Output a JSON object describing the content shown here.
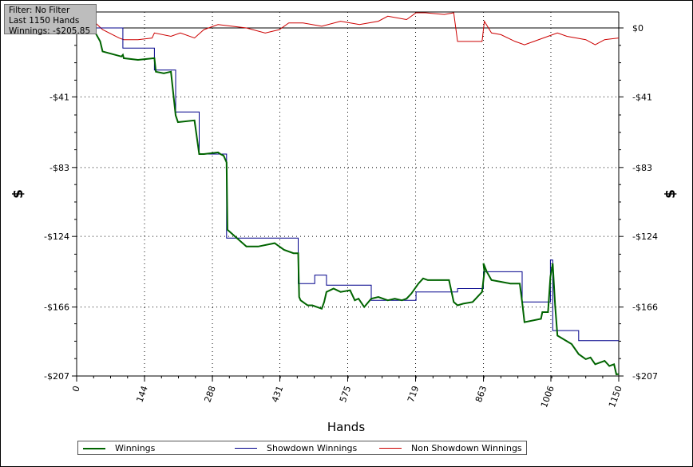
{
  "filter_box": {
    "line1": "Filter: No Filter",
    "line2": "Last 1150 Hands",
    "line3": "Winnings: -$205.85"
  },
  "chart_data": {
    "type": "line",
    "xlabel": "Hands",
    "ylabel_left": "$",
    "ylabel_right": "$",
    "xlim": [
      0,
      1150
    ],
    "ylim": [
      -207,
      10
    ],
    "x_ticks": [
      0,
      144,
      288,
      431,
      575,
      719,
      863,
      1006,
      1150
    ],
    "y_ticks": [
      0,
      -41,
      -83,
      -124,
      -166,
      -207
    ],
    "y_tick_labels": [
      "$0",
      "-$41",
      "-$83",
      "-$124",
      "-$166",
      "-$207"
    ],
    "grid": true,
    "legend_position": "bottom",
    "colors": {
      "winnings": "#006400",
      "showdown": "#00008b",
      "non_showdown": "#cc0000"
    },
    "series": [
      {
        "key": "winnings",
        "name": "Winnings",
        "x": [
          0,
          15,
          28,
          40,
          50,
          55,
          95,
          98,
          100,
          130,
          165,
          168,
          185,
          200,
          210,
          215,
          250,
          260,
          270,
          300,
          305,
          312,
          318,
          320,
          340,
          360,
          385,
          420,
          440,
          460,
          470,
          472,
          475,
          490,
          500,
          520,
          525,
          530,
          545,
          560,
          580,
          590,
          598,
          610,
          625,
          640,
          660,
          675,
          690,
          700,
          710,
          725,
          735,
          745,
          760,
          790,
          800,
          808,
          820,
          840,
          860,
          865,
          863,
          870,
          880,
          900,
          920,
          940,
          945,
          950,
          985,
          988,
          1000,
          1005,
          1010,
          1015,
          1020,
          1050,
          1065,
          1080,
          1090,
          1100,
          1120,
          1130,
          1140,
          1145,
          1150
        ],
        "y": [
          0,
          0,
          -2,
          -3,
          -8,
          -14,
          -17,
          -16,
          -18,
          -19,
          -18,
          -26,
          -27,
          -26,
          -52,
          -56,
          -55,
          -75,
          -75,
          -74,
          -75,
          -76,
          -80,
          -120,
          -125,
          -130,
          -130,
          -128,
          -132,
          -134,
          -134,
          -160,
          -162,
          -165,
          -165,
          -167,
          -163,
          -157,
          -155,
          -157,
          -156,
          -162,
          -161,
          -166,
          -161,
          -160,
          -162,
          -161,
          -162,
          -161,
          -158,
          -152,
          -149,
          -150,
          -150,
          -150,
          -163,
          -165,
          -164,
          -163,
          -157,
          -145,
          -140,
          -145,
          -150,
          -151,
          -152,
          -152,
          -163,
          -175,
          -173,
          -169,
          -169,
          -148,
          -140,
          -165,
          -183,
          -188,
          -194,
          -197,
          -196,
          -200,
          -198,
          -201,
          -200,
          -206,
          -205.85
        ]
      },
      {
        "key": "showdown",
        "name": "Showdown Winnings",
        "x": [
          0,
          98,
          98,
          165,
          165,
          210,
          210,
          260,
          260,
          318,
          318,
          470,
          470,
          505,
          505,
          530,
          530,
          625,
          625,
          720,
          720,
          808,
          808,
          863,
          863,
          945,
          945,
          1005,
          1005,
          1010,
          1010,
          1065,
          1065,
          1150
        ],
        "y": [
          0,
          0,
          -12,
          -12,
          -25,
          -25,
          -50,
          -50,
          -75,
          -75,
          -125,
          -125,
          -152,
          -152,
          -147,
          -147,
          -153,
          -153,
          -162,
          -162,
          -157,
          -157,
          -155,
          -155,
          -145,
          -145,
          -163,
          -163,
          -138,
          -138,
          -180,
          -180,
          -186,
          -186
        ]
      },
      {
        "key": "non_showdown",
        "name": "Non Showdown Winnings",
        "x": [
          0,
          20,
          40,
          55,
          90,
          100,
          130,
          160,
          165,
          200,
          220,
          250,
          270,
          300,
          330,
          360,
          400,
          430,
          450,
          480,
          520,
          560,
          600,
          640,
          660,
          700,
          720,
          740,
          780,
          800,
          808,
          830,
          860,
          865,
          880,
          900,
          930,
          950,
          970,
          1000,
          1020,
          1040,
          1060,
          1080,
          1100,
          1120,
          1150
        ],
        "y": [
          5,
          6,
          3,
          -1,
          -6,
          -7,
          -7,
          -6,
          -3,
          -5,
          -3,
          -6,
          -1,
          2,
          1,
          0,
          -3,
          -1,
          3,
          3,
          1,
          4,
          2,
          4,
          7,
          5,
          9,
          9,
          8,
          9,
          -8,
          -8,
          -8,
          4,
          -3,
          -4,
          -8,
          -10,
          -8,
          -5,
          -3,
          -5,
          -6,
          -7,
          -10,
          -7,
          -6
        ]
      }
    ]
  }
}
